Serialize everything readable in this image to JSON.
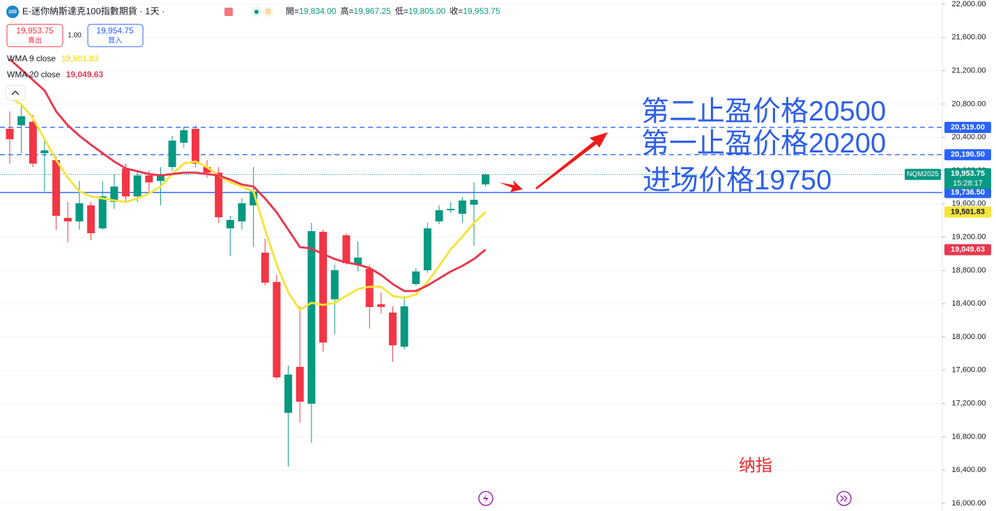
{
  "chart_data": {
    "type": "candlestick",
    "title": "E-迷你納斯達克100指數期貨 · 1天 ·",
    "logo": "100",
    "ohlc_header": [
      {
        "label": "開=",
        "value": "19,834.00"
      },
      {
        "label": "高=",
        "value": "19,967.25"
      },
      {
        "label": "低=",
        "value": "19,805.00"
      },
      {
        "label": "收=",
        "value": "19,953.75"
      }
    ],
    "sell": {
      "price": "19,953.75",
      "label": "賣出"
    },
    "quantity": "1.00",
    "buy": {
      "price": "19,954.75",
      "label": "買入"
    },
    "ylim": [
      16000,
      22000
    ],
    "yticks": [
      {
        "value": 16000,
        "label": "16,000.00"
      },
      {
        "value": 16400,
        "label": "16,400.00"
      },
      {
        "value": 16800,
        "label": "16,800.00"
      },
      {
        "value": 17200,
        "label": "17,200.00"
      },
      {
        "value": 17600,
        "label": "17,600.00"
      },
      {
        "value": 18000,
        "label": "18,000.00"
      },
      {
        "value": 18400,
        "label": "18,400.00"
      },
      {
        "value": 18800,
        "label": "18,800.00"
      },
      {
        "value": 19200,
        "label": "19,200.00"
      },
      {
        "value": 19600,
        "label": "19,600.00"
      },
      {
        "value": 20000,
        "label": "20,000.00"
      },
      {
        "value": 20400,
        "label": "20,400.00"
      },
      {
        "value": 20800,
        "label": "20,800.00"
      },
      {
        "value": 21200,
        "label": "21,200.00"
      },
      {
        "value": 21600,
        "label": "21,600.00"
      },
      {
        "value": 22000,
        "label": "22,000.00"
      }
    ],
    "grid": true,
    "up_color": "#089981",
    "down_color": "#f23645",
    "open": [
      20502,
      20544,
      20586,
      20209,
      20126,
      19431,
      19389,
      19582,
      19305,
      19623,
      20025,
      19690,
      19941,
      19875,
      20042,
      20335,
      20502,
      20042,
      19975,
      19305,
      19389,
      19582,
      19013,
      18661,
      17088,
      17640,
      17197,
      19264,
      18452,
      19222,
      18870,
      18820,
      18393,
      18293,
      17883,
      18636,
      18803,
      19389,
      19523,
      19481,
      19590,
      19834
    ],
    "high": [
      20711,
      20795,
      20670,
      20377,
      20167,
      19623,
      19875,
      19623,
      19875,
      19958,
      20084,
      20000,
      20000,
      20042,
      20418,
      20527,
      20544,
      20126,
      20042,
      19456,
      19665,
      20042,
      19180,
      18745,
      17657,
      18368,
      19372,
      19289,
      18870,
      19247,
      19147,
      18870,
      18536,
      18368,
      18494,
      18828,
      19372,
      19582,
      19623,
      19682,
      19858,
      19967.25
    ],
    "low": [
      20084,
      20209,
      20042,
      19749,
      19289,
      19138,
      19289,
      19163,
      19289,
      19540,
      19623,
      19623,
      19749,
      19582,
      20000,
      20276,
      20042,
      19916,
      19372,
      18971,
      19289,
      19080,
      18619,
      17490,
      16444,
      16971,
      16728,
      17824,
      18034,
      18870,
      18787,
      18100,
      18285,
      17699,
      17850,
      18619,
      18770,
      19356,
      19490,
      19372,
      19096,
      19805
    ],
    "close": [
      20377,
      20653,
      20084,
      20243,
      19456,
      19389,
      19607,
      19247,
      19690,
      19808,
      19690,
      19941,
      19858,
      19958,
      20360,
      20485,
      20084,
      19975,
      19439,
      19406,
      19607,
      19749,
      18653,
      17515,
      17548,
      17222,
      19272,
      17933,
      18803,
      18887,
      18954,
      18360,
      18360,
      17900,
      18368,
      18787,
      19305,
      19523,
      19540,
      19640,
      19649,
      19953.75
    ],
    "series": [
      {
        "name": "WMA 9 close",
        "color": "#f7e43a",
        "label_text_color": "#131722",
        "last_label": "19,501.83",
        "values": [
          20879,
          20795,
          20628,
          20377,
          20126,
          19916,
          19749,
          19690,
          19665,
          19640,
          19623,
          19665,
          19724,
          19808,
          19958,
          20084,
          20109,
          20042,
          19941,
          19858,
          19808,
          19749,
          19289,
          18870,
          18536,
          18326,
          18410,
          18385,
          18410,
          18494,
          18577,
          18603,
          18603,
          18494,
          18469,
          18511,
          18661,
          18854,
          19054,
          19205,
          19372,
          19501.83
        ]
      },
      {
        "name": "WMA 20 close",
        "color": "#e8384f",
        "label_text_color": "#ffffff",
        "last_label": "19,049.63",
        "values": [
          21339,
          21213,
          21088,
          20962,
          20711,
          20544,
          20418,
          20310,
          20209,
          20109,
          20025,
          19992,
          19958,
          19941,
          19958,
          19975,
          19975,
          19958,
          19941,
          19891,
          19833,
          19808,
          19665,
          19498,
          19289,
          19080,
          19063,
          18996,
          18937,
          18895,
          18870,
          18829,
          18745,
          18636,
          18552,
          18552,
          18619,
          18703,
          18787,
          18854,
          18937,
          19049.63
        ]
      }
    ],
    "price_lines": [
      {
        "value": 20519,
        "label": "20,519.00",
        "style": "dashed",
        "color": "#2962ff"
      },
      {
        "value": 20190.5,
        "label": "20,190.50",
        "style": "dashed",
        "color": "#2962ff"
      },
      {
        "value": 19736.5,
        "label": "19,736.50",
        "style": "solid",
        "color": "#2962ff"
      }
    ],
    "current_price": {
      "value": 19953.75,
      "label": "19,953.75",
      "symbol": "NQM2025",
      "countdown": "15:28:17"
    },
    "annotations": [
      "第二止盈价格20500",
      "第一止盈价格20200",
      "进场价格19750"
    ],
    "watermark": "纳指"
  }
}
